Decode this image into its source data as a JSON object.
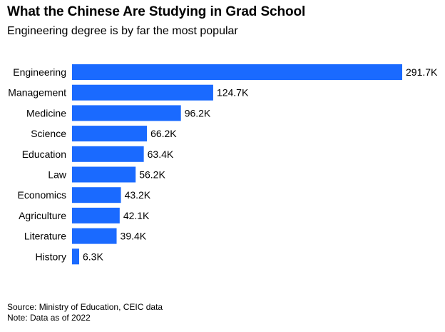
{
  "chart_data": {
    "type": "bar",
    "orientation": "horizontal",
    "title": "What the Chinese Are Studying in Grad School",
    "subtitle": "Engineering degree is by far the most popular",
    "categories": [
      "Engineering",
      "Management",
      "Medicine",
      "Science",
      "Education",
      "Law",
      "Economics",
      "Agriculture",
      "Literature",
      "History"
    ],
    "values": [
      291.7,
      124.7,
      96.2,
      66.2,
      63.4,
      56.2,
      43.2,
      42.1,
      39.4,
      6.3
    ],
    "value_labels": [
      "291.7K",
      "124.7K",
      "96.2K",
      "66.2K",
      "63.4K",
      "56.2K",
      "43.2K",
      "42.1K",
      "39.4K",
      "6.3K"
    ],
    "xlabel": "",
    "ylabel": "",
    "xlim": [
      0,
      291.7
    ],
    "grid": false,
    "legend": "none",
    "bar_color": "#1a6aff"
  },
  "footer": {
    "source": "Source: Ministry of Education, CEIC data",
    "note": "Note: Data as of 2022"
  }
}
